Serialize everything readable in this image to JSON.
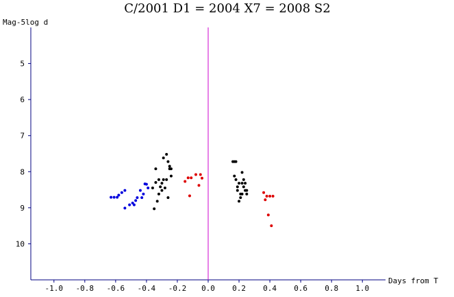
{
  "chart_data": {
    "type": "scatter",
    "title": "C/2001 D1 = 2004 X7 = 2008 S2",
    "xlabel": "Days from T",
    "ylabel": "Mag-5log d",
    "xlim": [
      -1.15,
      1.15
    ],
    "ylim": [
      4,
      11
    ],
    "y_inverted": true,
    "x_ticks": [
      -1.0,
      -0.8,
      -0.6,
      -0.4,
      -0.2,
      0.0,
      0.2,
      0.4,
      0.6,
      0.8,
      1.0
    ],
    "x_tick_labels": [
      "-1.0",
      "-0.8",
      "-0.6",
      "-0.4",
      "-0.2",
      "0.0",
      "0.2",
      "0.4",
      "0.6",
      "0.8",
      "1.0"
    ],
    "y_ticks": [
      5,
      6,
      7,
      8,
      9,
      10
    ],
    "y_tick_labels": [
      "5",
      "6",
      "7",
      "8",
      "9",
      "10"
    ],
    "vertical_line": {
      "x": 0.0,
      "color": "#cc00cc"
    },
    "axis_color": "#000080",
    "series": [
      {
        "color": "#0000dd",
        "points": [
          [
            -0.63,
            8.71
          ],
          [
            -0.61,
            8.71
          ],
          [
            -0.59,
            8.71
          ],
          [
            -0.58,
            8.65
          ],
          [
            -0.56,
            8.58
          ],
          [
            -0.54,
            8.52
          ],
          [
            -0.54,
            9.01
          ],
          [
            -0.51,
            8.92
          ],
          [
            -0.49,
            8.87
          ],
          [
            -0.48,
            8.92
          ],
          [
            -0.47,
            8.8
          ],
          [
            -0.46,
            8.72
          ],
          [
            -0.44,
            8.52
          ],
          [
            -0.43,
            8.72
          ],
          [
            -0.42,
            8.62
          ],
          [
            -0.41,
            8.34
          ],
          [
            -0.4,
            8.35
          ],
          [
            -0.39,
            8.45
          ]
        ]
      },
      {
        "color": "#000000",
        "points": [
          [
            -0.36,
            8.45
          ],
          [
            -0.35,
            9.03
          ],
          [
            -0.34,
            8.3
          ],
          [
            -0.34,
            7.92
          ],
          [
            -0.33,
            8.82
          ],
          [
            -0.32,
            8.62
          ],
          [
            -0.32,
            8.22
          ],
          [
            -0.31,
            8.42
          ],
          [
            -0.3,
            8.52
          ],
          [
            -0.3,
            8.32
          ],
          [
            -0.29,
            7.62
          ],
          [
            -0.29,
            8.22
          ],
          [
            -0.28,
            8.45
          ],
          [
            -0.27,
            8.22
          ],
          [
            -0.27,
            7.52
          ],
          [
            -0.26,
            7.72
          ],
          [
            -0.26,
            8.72
          ],
          [
            -0.25,
            7.92
          ],
          [
            -0.25,
            7.85
          ],
          [
            -0.24,
            7.92
          ],
          [
            -0.24,
            8.12
          ],
          [
            0.16,
            7.72
          ],
          [
            0.17,
            7.72
          ],
          [
            0.17,
            8.12
          ],
          [
            0.18,
            7.72
          ],
          [
            0.18,
            8.22
          ],
          [
            0.19,
            8.42
          ],
          [
            0.19,
            8.52
          ],
          [
            0.2,
            8.82
          ],
          [
            0.2,
            8.32
          ],
          [
            0.21,
            8.62
          ],
          [
            0.21,
            8.72
          ],
          [
            0.22,
            8.02
          ],
          [
            0.22,
            8.32
          ],
          [
            0.22,
            8.62
          ],
          [
            0.23,
            8.22
          ],
          [
            0.23,
            8.42
          ],
          [
            0.24,
            8.32
          ],
          [
            0.24,
            8.52
          ],
          [
            0.25,
            8.52
          ],
          [
            0.25,
            8.62
          ]
        ]
      },
      {
        "color": "#dd0000",
        "points": [
          [
            -0.15,
            8.27
          ],
          [
            -0.13,
            8.17
          ],
          [
            -0.12,
            8.67
          ],
          [
            -0.11,
            8.17
          ],
          [
            -0.08,
            8.08
          ],
          [
            -0.06,
            8.38
          ],
          [
            -0.05,
            8.08
          ],
          [
            -0.04,
            8.18
          ],
          [
            0.36,
            8.58
          ],
          [
            0.37,
            8.78
          ],
          [
            0.38,
            8.68
          ],
          [
            0.39,
            9.2
          ],
          [
            0.4,
            8.68
          ],
          [
            0.41,
            9.5
          ],
          [
            0.42,
            8.68
          ]
        ]
      }
    ]
  }
}
